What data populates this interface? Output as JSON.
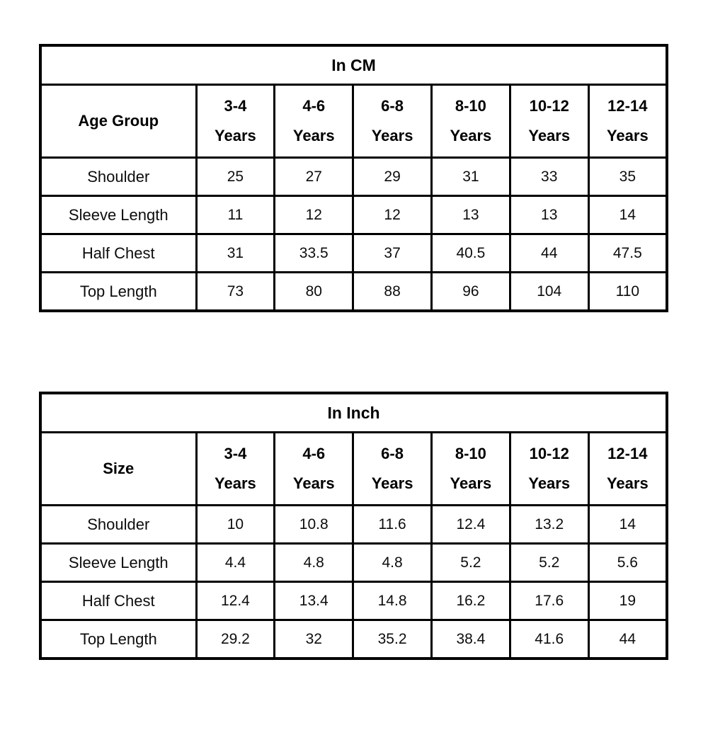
{
  "page": {
    "background": "#ffffff",
    "border_color": "#000000",
    "text_color": "#0d0d0d"
  },
  "tables": [
    {
      "title": "In CM",
      "corner_label": "Age Group",
      "columns": [
        {
          "range": "3-4",
          "unit": "Years"
        },
        {
          "range": "4-6",
          "unit": "Years"
        },
        {
          "range": "6-8",
          "unit": "Years"
        },
        {
          "range": "8-10",
          "unit": "Years"
        },
        {
          "range": "10-12",
          "unit": "Years"
        },
        {
          "range": "12-14",
          "unit": "Years"
        }
      ],
      "rows": [
        {
          "label": "Shoulder",
          "values": [
            "25",
            "27",
            "29",
            "31",
            "33",
            "35"
          ]
        },
        {
          "label": "Sleeve Length",
          "values": [
            "11",
            "12",
            "12",
            "13",
            "13",
            "14"
          ]
        },
        {
          "label": "Half Chest",
          "values": [
            "31",
            "33.5",
            "37",
            "40.5",
            "44",
            "47.5"
          ]
        },
        {
          "label": "Top Length",
          "values": [
            "73",
            "80",
            "88",
            "96",
            "104",
            "110"
          ]
        }
      ]
    },
    {
      "title": "In Inch",
      "corner_label": "Size",
      "columns": [
        {
          "range": "3-4",
          "unit": "Years"
        },
        {
          "range": "4-6",
          "unit": "Years"
        },
        {
          "range": "6-8",
          "unit": "Years"
        },
        {
          "range": "8-10",
          "unit": "Years"
        },
        {
          "range": "10-12",
          "unit": "Years"
        },
        {
          "range": "12-14",
          "unit": "Years"
        }
      ],
      "rows": [
        {
          "label": "Shoulder",
          "values": [
            "10",
            "10.8",
            "11.6",
            "12.4",
            "13.2",
            "14"
          ]
        },
        {
          "label": "Sleeve Length",
          "values": [
            "4.4",
            "4.8",
            "4.8",
            "5.2",
            "5.2",
            "5.6"
          ]
        },
        {
          "label": "Half Chest",
          "values": [
            "12.4",
            "13.4",
            "14.8",
            "16.2",
            "17.6",
            "19"
          ]
        },
        {
          "label": "Top Length",
          "values": [
            "29.2",
            "32",
            "35.2",
            "38.4",
            "41.6",
            "44"
          ]
        }
      ]
    }
  ]
}
